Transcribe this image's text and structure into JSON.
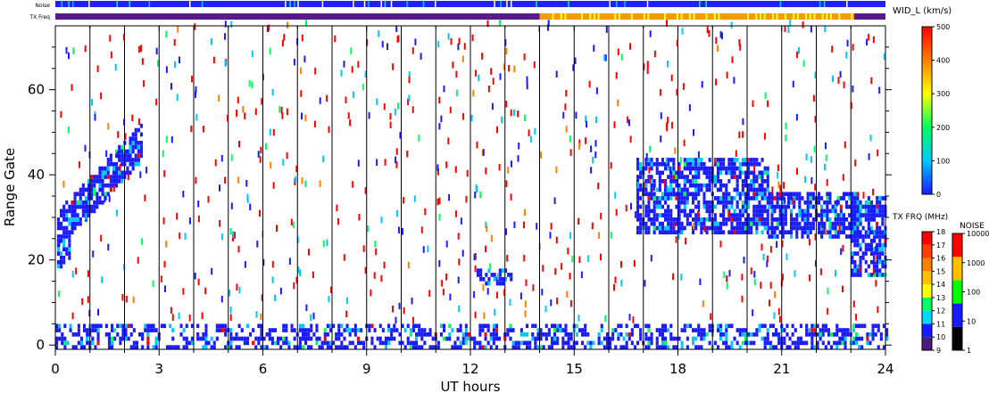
{
  "chart_data": {
    "type": "heatmap",
    "xlabel": "UT hours",
    "ylabel": "Range Gate",
    "xlim": [
      0,
      24
    ],
    "ylim": [
      -1,
      75
    ],
    "x_ticks": [
      0,
      3,
      6,
      9,
      12,
      15,
      18,
      21,
      24
    ],
    "y_ticks": [
      0,
      20,
      40,
      60
    ],
    "time_markers_ut": [
      1,
      2,
      3,
      4,
      5,
      6,
      7,
      8,
      9,
      10,
      11,
      12,
      13,
      14,
      15,
      16,
      17,
      18,
      19,
      20,
      21,
      22,
      23
    ],
    "strips": {
      "noise_label": "Noise",
      "txfreq_label": "TX Freq",
      "noise_base_color": "#2222ee",
      "txfreq_base_color": "#5a1a8a",
      "txfreq_segments": [
        {
          "start": 0,
          "end": 14,
          "color": "#5a1a8a"
        },
        {
          "start": 14,
          "end": 23.1,
          "color": "#f59a10"
        },
        {
          "start": 23.1,
          "end": 24,
          "color": "#5a1a8a"
        }
      ]
    },
    "wid_colorbar": {
      "title": "WID_L (km/s)",
      "ticks": [
        "0",
        "100",
        "200",
        "300",
        "400",
        "500"
      ],
      "range": [
        0,
        500
      ],
      "colors": [
        "#1a1aff",
        "#00c8ff",
        "#00ff60",
        "#ffff00",
        "#ff8000",
        "#ff0000"
      ]
    },
    "txfreq_colorbar": {
      "title": "TX FRQ (MHz)",
      "ticks": [
        "9",
        "10",
        "11",
        "12",
        "13",
        "14",
        "15",
        "16",
        "17",
        "18"
      ],
      "colors": [
        "#4b1a7a",
        "#1a1aff",
        "#00d8ff",
        "#00ff60",
        "#ffff00",
        "#ffc000",
        "#ff8000",
        "#ff4000",
        "#ff0000"
      ]
    },
    "noise_colorbar": {
      "title": "NOISE",
      "ticks": [
        "1",
        "10",
        "100",
        "1000",
        "10000"
      ],
      "colors": [
        "#000000",
        "#1a1aff",
        "#00ff00",
        "#ffc000",
        "#ff0000"
      ]
    },
    "echo_regions": [
      {
        "name": "ground-scatter-band",
        "t0": 0,
        "t1": 24,
        "g0": -1,
        "g1": 5,
        "density": 0.45
      },
      {
        "name": "rising-arc",
        "t0": 0.05,
        "t1": 2.5,
        "g_start": 27,
        "g_end": 48,
        "width": 8,
        "density": 0.8
      },
      {
        "name": "afternoon-blob",
        "t0": 16.8,
        "t1": 20.6,
        "g0": 26,
        "g1": 44,
        "density": 0.7
      },
      {
        "name": "evening-blob",
        "t0": 20.6,
        "t1": 23.3,
        "g0": 25,
        "g1": 36,
        "density": 0.7
      },
      {
        "name": "late-blob",
        "t0": 23.0,
        "t1": 24,
        "g0": 16,
        "g1": 35,
        "density": 0.7
      },
      {
        "name": "patch-12-13",
        "t0": 12.1,
        "t1": 13.2,
        "g0": 14,
        "g1": 18,
        "density": 0.5
      }
    ]
  }
}
